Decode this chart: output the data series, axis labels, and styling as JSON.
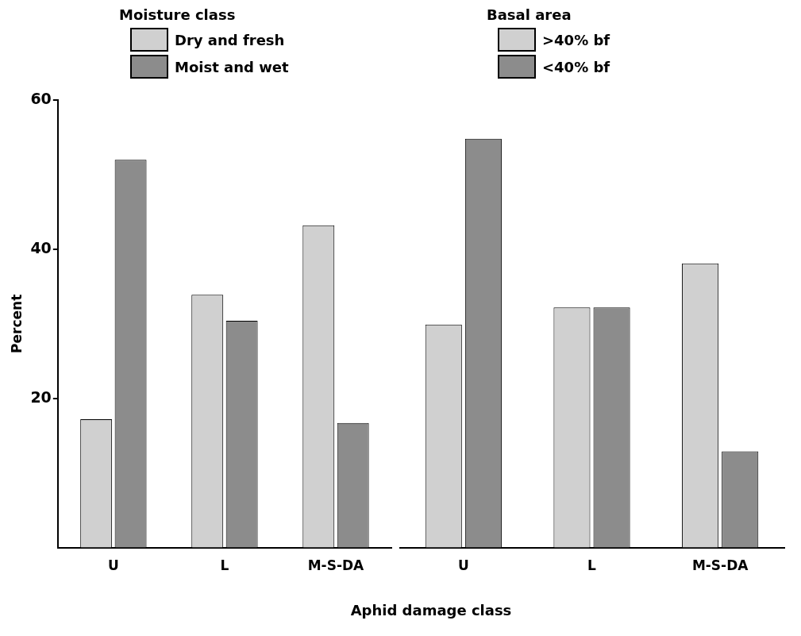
{
  "chart_data": [
    {
      "type": "bar",
      "legend_title": "Moisture class",
      "ylabel": "Percent",
      "xlabel": "Aphid damage class",
      "categories": [
        "U",
        "L",
        "M-S-DA"
      ],
      "series": [
        {
          "name": "Dry and fresh",
          "color": "#d0d0d0",
          "values": [
            17.2,
            33.9,
            43.2
          ]
        },
        {
          "name": "Moist and wet",
          "color": "#8c8c8c",
          "values": [
            52.0,
            30.4,
            16.7
          ]
        }
      ],
      "ylim": [
        0,
        60
      ],
      "yticks": [
        20,
        40,
        60
      ],
      "grid": false,
      "legend": "top left"
    },
    {
      "type": "bar",
      "legend_title": "Basal area",
      "categories": [
        "U",
        "L",
        "M-S-DA"
      ],
      "series": [
        {
          "name": ">40% bf",
          "color": "#d0d0d0",
          "values": [
            29.9,
            32.2,
            38.1
          ]
        },
        {
          "name": "<40% bf",
          "color": "#8c8c8c",
          "values": [
            54.8,
            32.2,
            12.9
          ]
        }
      ],
      "ylim": [
        0,
        60
      ],
      "yticks": [
        20,
        40,
        60
      ],
      "grid": false,
      "legend": "top left",
      "tick_labels": "x"
    }
  ]
}
